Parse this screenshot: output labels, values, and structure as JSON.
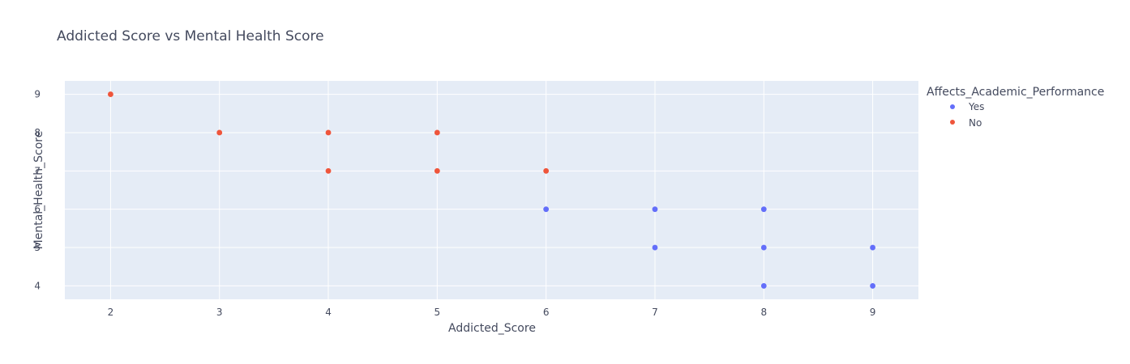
{
  "chart_data": {
    "type": "scatter",
    "title": "Addicted Score vs Mental Health Score",
    "xlabel": "Addicted_Score",
    "ylabel": "Mental_Health_Score",
    "xlim": [
      1.58,
      9.42
    ],
    "ylim": [
      3.65,
      9.35
    ],
    "xticks": [
      2,
      3,
      4,
      5,
      6,
      7,
      8,
      9
    ],
    "yticks": [
      4,
      5,
      6,
      7,
      8,
      9
    ],
    "grid": true,
    "legend": {
      "title": "Affects_Academic_Performance",
      "placement": "right"
    },
    "series": [
      {
        "name": "Yes",
        "color": "#636efa",
        "x": [
          6,
          7,
          7,
          8,
          8,
          8,
          9,
          9
        ],
        "y": [
          6,
          6,
          5,
          6,
          5,
          4,
          5,
          4
        ]
      },
      {
        "name": "No",
        "color": "#ef553b",
        "x": [
          2,
          3,
          4,
          4,
          5,
          5,
          6
        ],
        "y": [
          9,
          8,
          8,
          7,
          8,
          7,
          7
        ]
      }
    ]
  },
  "colors": {
    "plot_background": "#e5ecf6",
    "grid": "#ffffff",
    "text": "#444a5e"
  }
}
